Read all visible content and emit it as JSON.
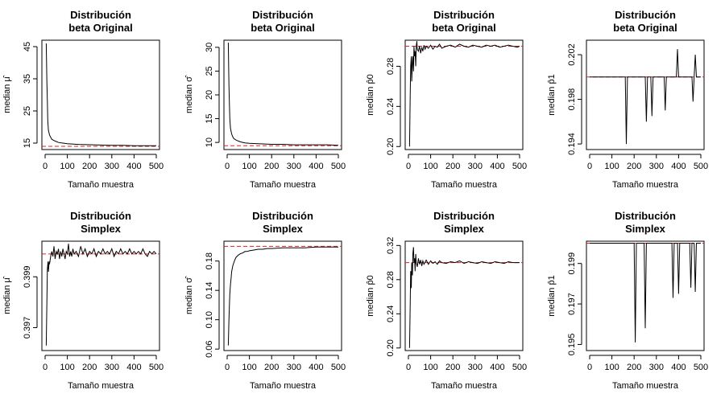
{
  "chart_data": [
    {
      "type": "line",
      "title": [
        "Distribución",
        "beta Original"
      ],
      "xlabel": "Tamaño muestra",
      "ylabel": "median μ̂",
      "xlim": [
        0,
        500
      ],
      "ylim": [
        13,
        47
      ],
      "xticks": [
        0,
        100,
        200,
        300,
        400,
        500
      ],
      "yticks": [
        15,
        25,
        35,
        45
      ],
      "reference": 14,
      "series": [
        {
          "x": [
            5,
            8,
            10,
            12,
            15,
            20,
            25,
            30,
            40,
            50,
            60,
            80,
            100,
            150,
            200,
            250,
            300,
            350,
            400,
            450,
            500
          ],
          "y": [
            46,
            34,
            28,
            22,
            19,
            17.5,
            16.8,
            16.2,
            15.8,
            15.5,
            15.2,
            15.0,
            14.8,
            14.6,
            14.5,
            14.4,
            14.3,
            14.3,
            14.2,
            14.2,
            14.2
          ]
        }
      ]
    },
    {
      "type": "line",
      "title": [
        "Distribución",
        "beta Original"
      ],
      "xlabel": "Tamaño muestra",
      "ylabel": "median σ̂",
      "xlim": [
        0,
        500
      ],
      "ylim": [
        8.5,
        31.5
      ],
      "xticks": [
        0,
        100,
        200,
        300,
        400,
        500
      ],
      "yticks": [
        10,
        15,
        20,
        25,
        30
      ],
      "reference": 9.3,
      "series": [
        {
          "x": [
            5,
            8,
            10,
            12,
            15,
            20,
            25,
            30,
            40,
            50,
            60,
            80,
            100,
            150,
            200,
            250,
            300,
            350,
            400,
            450,
            500
          ],
          "y": [
            31,
            22,
            18,
            15,
            13,
            11.8,
            11.2,
            10.8,
            10.5,
            10.3,
            10.1,
            9.9,
            9.8,
            9.7,
            9.6,
            9.6,
            9.5,
            9.5,
            9.5,
            9.5,
            9.4
          ]
        }
      ]
    },
    {
      "type": "line",
      "title": [
        "Distribución",
        "beta Original"
      ],
      "xlabel": "Tamaño muestra",
      "ylabel": "median p̂0",
      "xlim": [
        0,
        500
      ],
      "ylim": [
        0.197,
        0.306
      ],
      "xticks": [
        0,
        100,
        200,
        300,
        400,
        500
      ],
      "yticks": [
        0.2,
        0.24,
        0.28
      ],
      "yticklabels": [
        "0.20",
        "0.24",
        "0.28"
      ],
      "reference": 0.3,
      "series": [
        {
          "x": [
            5,
            8,
            10,
            13,
            15,
            18,
            20,
            23,
            25,
            28,
            30,
            33,
            35,
            38,
            40,
            45,
            50,
            55,
            60,
            65,
            70,
            75,
            80,
            90,
            100,
            110,
            120,
            130,
            140,
            150,
            170,
            190,
            210,
            230,
            250,
            270,
            290,
            310,
            330,
            350,
            370,
            390,
            410,
            430,
            450,
            470,
            490,
            500
          ],
          "y": [
            0.2,
            0.25,
            0.28,
            0.29,
            0.265,
            0.285,
            0.29,
            0.275,
            0.3,
            0.29,
            0.295,
            0.28,
            0.3,
            0.305,
            0.297,
            0.295,
            0.3,
            0.293,
            0.299,
            0.295,
            0.301,
            0.297,
            0.3,
            0.298,
            0.301,
            0.297,
            0.3,
            0.299,
            0.302,
            0.298,
            0.3,
            0.301,
            0.299,
            0.302,
            0.3,
            0.299,
            0.301,
            0.3,
            0.299,
            0.301,
            0.3,
            0.301,
            0.299,
            0.3,
            0.301,
            0.3,
            0.299,
            0.3
          ]
        }
      ]
    },
    {
      "type": "line",
      "title": [
        "Distribución",
        "beta Original"
      ],
      "xlabel": "Tamaño muestra",
      "ylabel": "median p̂1",
      "xlim": [
        0,
        500
      ],
      "ylim": [
        0.1935,
        0.2033
      ],
      "xticks": [
        0,
        100,
        200,
        300,
        400,
        500
      ],
      "yticks": [
        0.194,
        0.198,
        0.202
      ],
      "yticklabels": [
        "0.194",
        "0.198",
        "0.202"
      ],
      "reference": 0.2,
      "series": [
        {
          "x": [
            0,
            160,
            165,
            170,
            250,
            255,
            260,
            275,
            280,
            285,
            335,
            340,
            345,
            390,
            395,
            400,
            460,
            465,
            470,
            475,
            480,
            485,
            500
          ],
          "y": [
            0.2,
            0.2,
            0.194,
            0.2,
            0.2,
            0.196,
            0.2,
            0.2,
            0.1965,
            0.2,
            0.2,
            0.197,
            0.2,
            0.2,
            0.2025,
            0.2,
            0.2,
            0.1978,
            0.2,
            0.202,
            0.2,
            0.2,
            0.2
          ]
        }
      ]
    },
    {
      "type": "line",
      "title": [
        "Distribución",
        "Simplex"
      ],
      "xlabel": "Tamaño muestra",
      "ylabel": "median μ̂",
      "xlim": [
        0,
        500
      ],
      "ylim": [
        0.3961,
        0.4004
      ],
      "xticks": [
        0,
        100,
        200,
        300,
        400,
        500
      ],
      "yticks": [
        0.397,
        0.399
      ],
      "yticklabels": [
        "0.397",
        "0.399"
      ],
      "reference": 0.3999,
      "series": [
        {
          "x": [
            5,
            8,
            10,
            13,
            15,
            18,
            20,
            25,
            30,
            35,
            40,
            45,
            50,
            55,
            60,
            65,
            70,
            75,
            80,
            85,
            90,
            95,
            100,
            105,
            110,
            115,
            120,
            125,
            130,
            140,
            150,
            160,
            170,
            180,
            190,
            200,
            210,
            220,
            230,
            240,
            250,
            260,
            270,
            280,
            290,
            300,
            310,
            320,
            330,
            340,
            350,
            360,
            370,
            380,
            390,
            400,
            410,
            420,
            430,
            440,
            450,
            460,
            470,
            480,
            490,
            500
          ],
          "y": [
            0.3963,
            0.398,
            0.3993,
            0.3996,
            0.3992,
            0.3996,
            0.3995,
            0.3998,
            0.4,
            0.3998,
            0.4002,
            0.3997,
            0.4,
            0.3999,
            0.4001,
            0.3997,
            0.4,
            0.3998,
            0.4001,
            0.3999,
            0.3997,
            0.4,
            0.3999,
            0.4003,
            0.3998,
            0.4,
            0.3998,
            0.4001,
            0.3999,
            0.4,
            0.3998,
            0.4002,
            0.3999,
            0.4001,
            0.3998,
            0.4,
            0.3999,
            0.4001,
            0.3998,
            0.4,
            0.3999,
            0.4001,
            0.3999,
            0.4,
            0.3999,
            0.4001,
            0.3998,
            0.4,
            0.3999,
            0.4001,
            0.3999,
            0.4,
            0.3999,
            0.4001,
            0.3999,
            0.4,
            0.3999,
            0.4,
            0.3999,
            0.4001,
            0.3999,
            0.3998,
            0.4,
            0.3999,
            0.4,
            0.3999
          ]
        }
      ]
    },
    {
      "type": "line",
      "title": [
        "Distribución",
        "Simplex"
      ],
      "xlabel": "Tamaño muestra",
      "ylabel": "median σ̂",
      "xlim": [
        0,
        500
      ],
      "ylim": [
        0.058,
        0.207
      ],
      "xticks": [
        0,
        100,
        200,
        300,
        400,
        500
      ],
      "yticks": [
        0.06,
        0.1,
        0.14,
        0.18
      ],
      "yticklabels": [
        "0.06",
        "0.10",
        "0.14",
        "0.18"
      ],
      "reference": 0.2,
      "series": [
        {
          "x": [
            5,
            8,
            10,
            12,
            15,
            18,
            20,
            25,
            30,
            35,
            40,
            50,
            60,
            70,
            80,
            90,
            100,
            120,
            140,
            160,
            180,
            200,
            250,
            300,
            350,
            400,
            450,
            500
          ],
          "y": [
            0.065,
            0.1,
            0.12,
            0.135,
            0.148,
            0.158,
            0.165,
            0.173,
            0.178,
            0.182,
            0.185,
            0.188,
            0.19,
            0.191,
            0.193,
            0.193,
            0.194,
            0.195,
            0.196,
            0.196,
            0.197,
            0.197,
            0.198,
            0.198,
            0.198,
            0.199,
            0.199,
            0.199
          ]
        }
      ]
    },
    {
      "type": "line",
      "title": [
        "Distribución",
        "Simplex"
      ],
      "xlabel": "Tamaño muestra",
      "ylabel": "median p̂0",
      "xlim": [
        0,
        500
      ],
      "ylim": [
        0.197,
        0.325
      ],
      "xticks": [
        0,
        100,
        200,
        300,
        400,
        500
      ],
      "yticks": [
        0.2,
        0.24,
        0.28,
        0.32
      ],
      "yticklabels": [
        "0.20",
        "0.24",
        "0.28",
        "0.32"
      ],
      "reference": 0.3,
      "series": [
        {
          "x": [
            5,
            8,
            10,
            13,
            15,
            18,
            20,
            23,
            25,
            28,
            30,
            33,
            35,
            40,
            45,
            50,
            55,
            60,
            65,
            70,
            80,
            90,
            100,
            110,
            120,
            130,
            140,
            150,
            170,
            190,
            210,
            230,
            250,
            270,
            290,
            310,
            330,
            350,
            370,
            390,
            410,
            430,
            450,
            470,
            490,
            500
          ],
          "y": [
            0.2,
            0.25,
            0.29,
            0.27,
            0.3,
            0.285,
            0.31,
            0.318,
            0.3,
            0.305,
            0.29,
            0.31,
            0.3,
            0.295,
            0.305,
            0.298,
            0.303,
            0.296,
            0.302,
            0.298,
            0.303,
            0.298,
            0.302,
            0.299,
            0.301,
            0.298,
            0.302,
            0.3,
            0.299,
            0.301,
            0.3,
            0.302,
            0.299,
            0.301,
            0.3,
            0.299,
            0.301,
            0.3,
            0.299,
            0.301,
            0.3,
            0.299,
            0.301,
            0.3,
            0.3,
            0.3
          ]
        }
      ]
    },
    {
      "type": "line",
      "title": [
        "Distribución",
        "Simplex"
      ],
      "xlabel": "Tamaño muestra",
      "ylabel": "median p̂1",
      "xlim": [
        0,
        500
      ],
      "ylim": [
        0.1947,
        0.2001
      ],
      "xticks": [
        0,
        100,
        200,
        300,
        400,
        500
      ],
      "yticks": [
        0.195,
        0.197,
        0.199
      ],
      "yticklabels": [
        "0.195",
        "0.197",
        "0.199"
      ],
      "reference": 0.2,
      "series": [
        {
          "x": [
            0,
            200,
            205,
            210,
            245,
            250,
            255,
            370,
            375,
            380,
            395,
            400,
            405,
            450,
            455,
            460,
            470,
            475,
            480,
            500
          ],
          "y": [
            0.2,
            0.2,
            0.1951,
            0.2,
            0.2,
            0.1958,
            0.2,
            0.2,
            0.1973,
            0.2,
            0.2,
            0.1975,
            0.2,
            0.2,
            0.1978,
            0.2,
            0.2,
            0.1976,
            0.2,
            0.2
          ]
        }
      ]
    }
  ]
}
